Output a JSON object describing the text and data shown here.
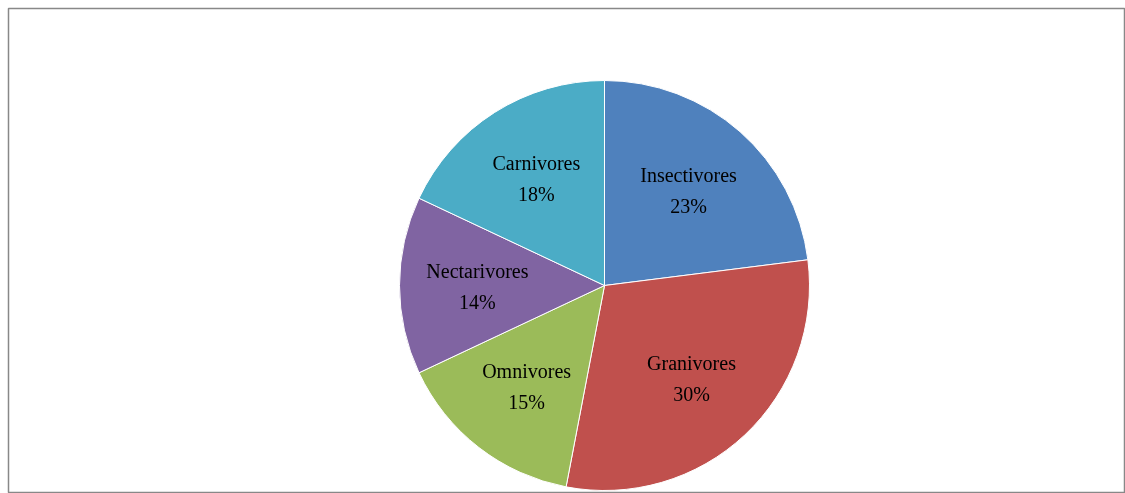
{
  "chart_data": {
    "type": "pie",
    "categories": [
      "Insectivores",
      "Granivores",
      "Omnivores",
      "Nectarivores",
      "Carnivores"
    ],
    "values": [
      23,
      30,
      15,
      14,
      18
    ],
    "colors": [
      "#4f81bd",
      "#c0504d",
      "#9bbb59",
      "#8064a2",
      "#4bacc6"
    ],
    "value_labels": [
      "23%",
      "30%",
      "15%",
      "14%",
      "18%"
    ]
  }
}
